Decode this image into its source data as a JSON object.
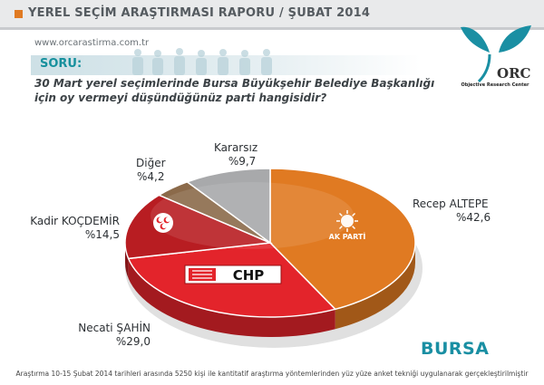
{
  "header": {
    "title": "YEREL SEÇİM ARAŞTIRMASI RAPORU / ŞUBAT 2014",
    "url": "www.orcarastirma.com.tr"
  },
  "question": {
    "label": "SORU:",
    "line1": "30 Mart yerel seçimlerinde Bursa Büyükşehir Belediye Başkanlığı",
    "line2": "için oy vermeyi düşündüğünüz parti hangisidir?"
  },
  "logo": {
    "text": "ORC",
    "caption": "Objective Research Center",
    "color": "#1a8fa3"
  },
  "chart_data": {
    "type": "pie",
    "title": "",
    "slices": [
      {
        "name": "Recep ALTEPE",
        "label": "%42,6",
        "value": 42.6,
        "color": "#e07a22",
        "party": "AK PARTİ"
      },
      {
        "name": "Necati ŞAHİN",
        "label": "%29,0",
        "value": 29.0,
        "color": "#e3242b",
        "party": "CHP"
      },
      {
        "name": "Kadir KOÇDEMİR",
        "label": "%14,5",
        "value": 14.5,
        "color": "#b81d22",
        "party": "MHP"
      },
      {
        "name": "Diğer",
        "label": "%4,2",
        "value": 4.2,
        "color": "#8b6a4a",
        "party": ""
      },
      {
        "name": "Kararsız",
        "label": "%9,7",
        "value": 9.7,
        "color": "#a8a9ab",
        "party": ""
      }
    ]
  },
  "region": "BURSA",
  "footer": "Araştırma 10-15 Şubat 2014 tarihleri arasında 5250 kişi ile kantitatif araştırma yöntemlerinden yüz yüze anket tekniği uygulanarak gerçekleştirilmiştir"
}
